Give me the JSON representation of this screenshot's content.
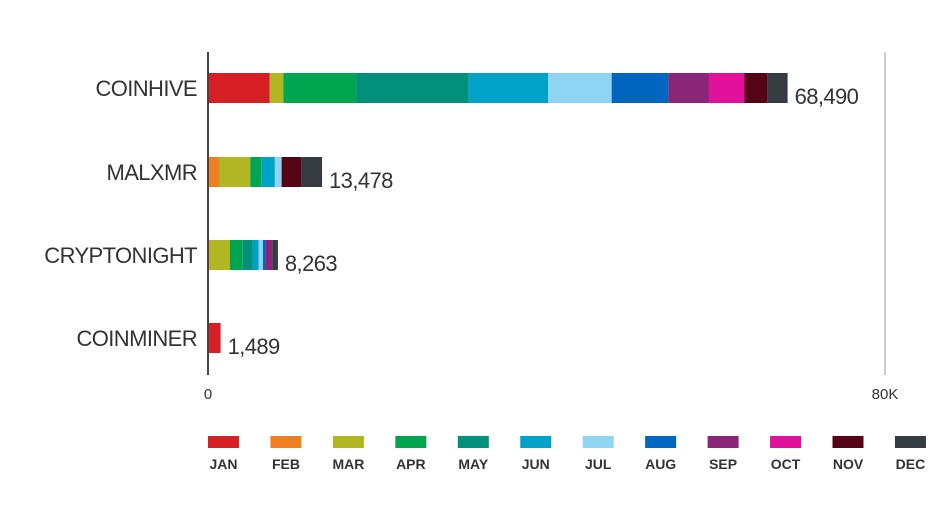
{
  "chart_data": {
    "type": "bar",
    "orientation": "horizontal",
    "stacked": true,
    "title": "",
    "xlabel": "",
    "ylabel": "",
    "xlim": [
      0,
      80000
    ],
    "x_ticks": [
      "0",
      "80K"
    ],
    "grid": false,
    "legend_position": "bottom",
    "categories": [
      "COINHIVE",
      "MALXMR",
      "CRYPTONIGHT",
      "COINMINER"
    ],
    "totals": [
      "68,490",
      "13,478",
      "8,263",
      "1,489"
    ],
    "series": [
      {
        "name": "JAN",
        "color": "#d71f26",
        "values": [
          7300,
          0,
          0,
          1489
        ]
      },
      {
        "name": "FEB",
        "color": "#f07f24",
        "values": [
          0,
          1300,
          200,
          0
        ]
      },
      {
        "name": "MAR",
        "color": "#b1b723",
        "values": [
          1600,
          3700,
          2400,
          0
        ]
      },
      {
        "name": "APR",
        "color": "#00a54f",
        "values": [
          8600,
          1300,
          1500,
          0
        ]
      },
      {
        "name": "MAY",
        "color": "#00907c",
        "values": [
          13300,
          0,
          1200,
          0
        ]
      },
      {
        "name": "JUN",
        "color": "#00a3c7",
        "values": [
          9400,
          1600,
          700,
          0
        ]
      },
      {
        "name": "JUL",
        "color": "#8fd4f3",
        "values": [
          7500,
          800,
          500,
          0
        ]
      },
      {
        "name": "AUG",
        "color": "#0066bf",
        "values": [
          6700,
          0,
          300,
          0
        ]
      },
      {
        "name": "SEP",
        "color": "#8a2577",
        "values": [
          4800,
          0,
          800,
          0
        ]
      },
      {
        "name": "OCT",
        "color": "#e2119a",
        "values": [
          4200,
          0,
          0,
          0
        ]
      },
      {
        "name": "NOV",
        "color": "#540415",
        "values": [
          2700,
          2300,
          0,
          0
        ]
      },
      {
        "name": "DEC",
        "color": "#343c41",
        "values": [
          2390,
          2478,
          663,
          0
        ]
      }
    ]
  }
}
